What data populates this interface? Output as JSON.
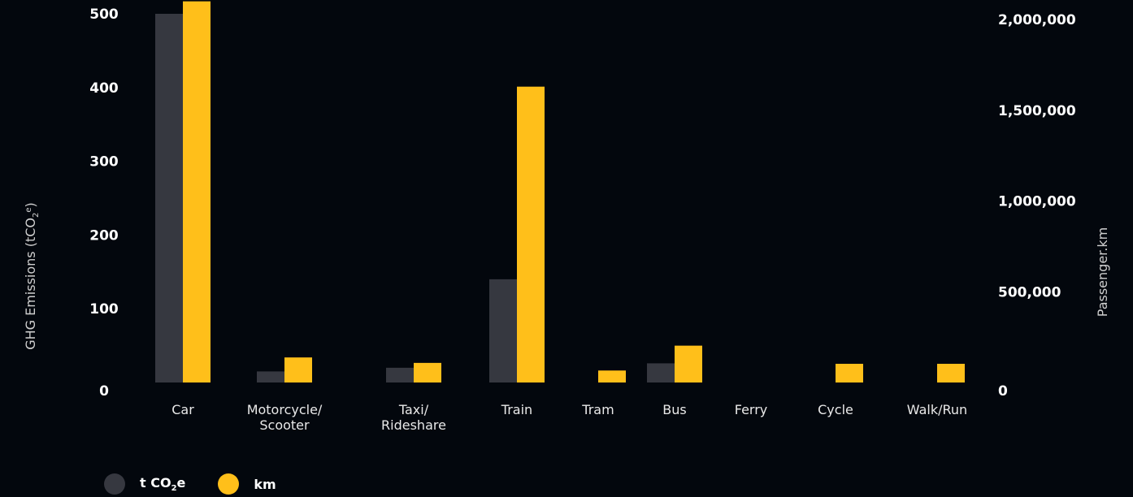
{
  "chart_data": {
    "type": "bar",
    "categories": [
      [
        "Car"
      ],
      [
        "Motorcycle/",
        "Scooter"
      ],
      [
        "Taxi/",
        "Rideshare"
      ],
      [
        "Train"
      ],
      [
        "Tram"
      ],
      [
        "Bus"
      ],
      [
        "Ferry"
      ],
      [
        "Cycle"
      ],
      [
        "Walk/Run"
      ]
    ],
    "series": [
      {
        "name": "t CO2e",
        "axis": "left",
        "color": "#363840",
        "values": [
          500,
          15,
          20,
          140,
          0,
          26,
          0,
          0,
          0
        ]
      },
      {
        "name": "km",
        "axis": "right",
        "color": "#ffbf1a",
        "values": [
          2100000,
          138000,
          108000,
          1630000,
          66000,
          203000,
          0,
          103000,
          103000
        ]
      }
    ],
    "y_left": {
      "label": "GHG Emissions (tCO",
      "label_sub": "2",
      "label_sup": "e",
      "label_end": ")",
      "ticks": [
        "500",
        "400",
        "300",
        "200",
        "100",
        "0"
      ],
      "tick_values": [
        500,
        400,
        300,
        200,
        100,
        0
      ],
      "range": [
        0,
        500
      ]
    },
    "y_right": {
      "label": "Passenger.km",
      "ticks": [
        "2,000,000",
        "1,500,000",
        "1,000,000",
        "500,000",
        "0"
      ],
      "tick_values": [
        2000000,
        1500000,
        1000000,
        500000,
        0
      ],
      "range": [
        0,
        2000000
      ]
    },
    "legend": {
      "position": "bottom-left",
      "items": [
        {
          "text": "t CO",
          "sub": "2",
          "end": "e",
          "color": "#363840"
        },
        {
          "text": "km",
          "sub": "",
          "end": "",
          "color": "#ffbf1a"
        }
      ]
    },
    "grid": false
  }
}
